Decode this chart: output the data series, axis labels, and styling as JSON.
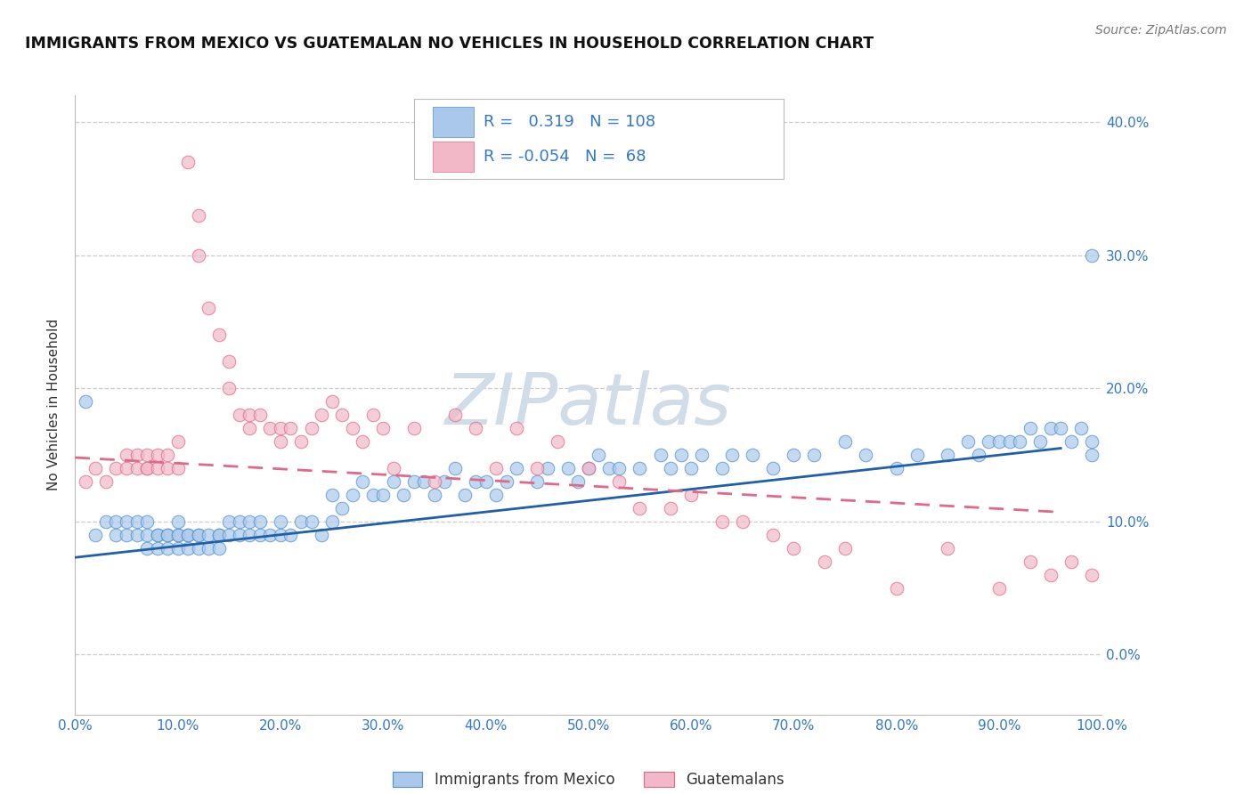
{
  "title": "IMMIGRANTS FROM MEXICO VS GUATEMALAN NO VEHICLES IN HOUSEHOLD CORRELATION CHART",
  "source": "Source: ZipAtlas.com",
  "ylabel": "No Vehicles in Household",
  "watermark": "ZIPatlas",
  "legend1_label": "Immigrants from Mexico",
  "legend2_label": "Guatemalans",
  "r1": 0.319,
  "n1": 108,
  "r2": -0.054,
  "n2": 68,
  "blue_color": "#aac8ec",
  "pink_color": "#f2b8c8",
  "blue_edge_color": "#5090c8",
  "pink_edge_color": "#e06888",
  "blue_line_color": "#2060a8",
  "pink_line_color": "#e06888",
  "title_color": "#111111",
  "axis_label_color": "#333333",
  "tick_color": "#3378c8",
  "background_color": "#ffffff",
  "xlim": [
    0.0,
    1.0
  ],
  "ylim": [
    -0.045,
    0.42
  ],
  "xticks": [
    0.0,
    0.1,
    0.2,
    0.3,
    0.4,
    0.5,
    0.6,
    0.7,
    0.8,
    0.9,
    1.0
  ],
  "yticks": [
    0.0,
    0.1,
    0.2,
    0.3,
    0.4
  ],
  "blue_x": [
    0.01,
    0.02,
    0.03,
    0.04,
    0.04,
    0.05,
    0.05,
    0.06,
    0.06,
    0.07,
    0.07,
    0.07,
    0.08,
    0.08,
    0.08,
    0.09,
    0.09,
    0.09,
    0.1,
    0.1,
    0.1,
    0.1,
    0.11,
    0.11,
    0.11,
    0.12,
    0.12,
    0.12,
    0.13,
    0.13,
    0.14,
    0.14,
    0.14,
    0.15,
    0.15,
    0.16,
    0.16,
    0.17,
    0.17,
    0.18,
    0.18,
    0.19,
    0.2,
    0.2,
    0.21,
    0.22,
    0.23,
    0.24,
    0.25,
    0.25,
    0.26,
    0.27,
    0.28,
    0.29,
    0.3,
    0.31,
    0.32,
    0.33,
    0.34,
    0.35,
    0.36,
    0.37,
    0.38,
    0.39,
    0.4,
    0.41,
    0.42,
    0.43,
    0.45,
    0.46,
    0.48,
    0.49,
    0.5,
    0.51,
    0.52,
    0.53,
    0.55,
    0.57,
    0.58,
    0.59,
    0.6,
    0.61,
    0.63,
    0.64,
    0.66,
    0.68,
    0.7,
    0.72,
    0.75,
    0.77,
    0.8,
    0.82,
    0.85,
    0.87,
    0.88,
    0.89,
    0.9,
    0.91,
    0.92,
    0.93,
    0.94,
    0.95,
    0.96,
    0.97,
    0.98,
    0.99,
    0.99,
    0.99
  ],
  "blue_y": [
    0.19,
    0.09,
    0.1,
    0.09,
    0.1,
    0.09,
    0.1,
    0.09,
    0.1,
    0.09,
    0.08,
    0.1,
    0.09,
    0.08,
    0.09,
    0.09,
    0.08,
    0.09,
    0.09,
    0.08,
    0.09,
    0.1,
    0.09,
    0.08,
    0.09,
    0.09,
    0.08,
    0.09,
    0.08,
    0.09,
    0.09,
    0.08,
    0.09,
    0.09,
    0.1,
    0.09,
    0.1,
    0.09,
    0.1,
    0.09,
    0.1,
    0.09,
    0.09,
    0.1,
    0.09,
    0.1,
    0.1,
    0.09,
    0.1,
    0.12,
    0.11,
    0.12,
    0.13,
    0.12,
    0.12,
    0.13,
    0.12,
    0.13,
    0.13,
    0.12,
    0.13,
    0.14,
    0.12,
    0.13,
    0.13,
    0.12,
    0.13,
    0.14,
    0.13,
    0.14,
    0.14,
    0.13,
    0.14,
    0.15,
    0.14,
    0.14,
    0.14,
    0.15,
    0.14,
    0.15,
    0.14,
    0.15,
    0.14,
    0.15,
    0.15,
    0.14,
    0.15,
    0.15,
    0.16,
    0.15,
    0.14,
    0.15,
    0.15,
    0.16,
    0.15,
    0.16,
    0.16,
    0.16,
    0.16,
    0.17,
    0.16,
    0.17,
    0.17,
    0.16,
    0.17,
    0.15,
    0.16,
    0.3
  ],
  "pink_x": [
    0.01,
    0.02,
    0.03,
    0.04,
    0.05,
    0.05,
    0.06,
    0.06,
    0.07,
    0.07,
    0.07,
    0.08,
    0.08,
    0.09,
    0.09,
    0.1,
    0.1,
    0.11,
    0.12,
    0.12,
    0.13,
    0.14,
    0.15,
    0.15,
    0.16,
    0.17,
    0.17,
    0.18,
    0.19,
    0.2,
    0.2,
    0.21,
    0.22,
    0.23,
    0.24,
    0.25,
    0.26,
    0.27,
    0.28,
    0.29,
    0.3,
    0.31,
    0.33,
    0.35,
    0.37,
    0.39,
    0.41,
    0.43,
    0.45,
    0.47,
    0.5,
    0.53,
    0.55,
    0.58,
    0.6,
    0.63,
    0.65,
    0.68,
    0.7,
    0.73,
    0.75,
    0.8,
    0.85,
    0.9,
    0.93,
    0.95,
    0.97,
    0.99
  ],
  "pink_y": [
    0.13,
    0.14,
    0.13,
    0.14,
    0.15,
    0.14,
    0.15,
    0.14,
    0.14,
    0.15,
    0.14,
    0.15,
    0.14,
    0.15,
    0.14,
    0.14,
    0.16,
    0.37,
    0.33,
    0.3,
    0.26,
    0.24,
    0.22,
    0.2,
    0.18,
    0.17,
    0.18,
    0.18,
    0.17,
    0.17,
    0.16,
    0.17,
    0.16,
    0.17,
    0.18,
    0.19,
    0.18,
    0.17,
    0.16,
    0.18,
    0.17,
    0.14,
    0.17,
    0.13,
    0.18,
    0.17,
    0.14,
    0.17,
    0.14,
    0.16,
    0.14,
    0.13,
    0.11,
    0.11,
    0.12,
    0.1,
    0.1,
    0.09,
    0.08,
    0.07,
    0.08,
    0.05,
    0.08,
    0.05,
    0.07,
    0.06,
    0.07,
    0.06
  ],
  "blue_trend_x": [
    0.0,
    0.96
  ],
  "blue_trend_y": [
    0.073,
    0.155
  ],
  "pink_trend_x": [
    0.0,
    0.96
  ],
  "pink_trend_y": [
    0.148,
    0.107
  ],
  "grid_color": "#cccccc",
  "watermark_color": "#d0dce8",
  "scatter_size": 110,
  "scatter_alpha": 0.7
}
